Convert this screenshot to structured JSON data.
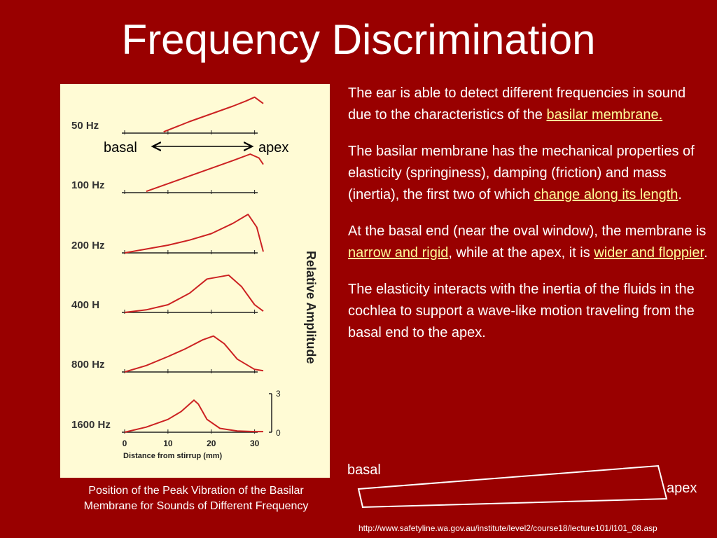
{
  "slide": {
    "title": "Frequency Discrimination",
    "caption": "Position of the Peak Vibration of the Basilar Membrane for Sounds of Different Frequency",
    "source_url": "http://www.safetyline.wa.gov.au/institute/level2/course18/lecture101/l101_08.asp",
    "background_color": "#990000",
    "highlight_color": "#ffff99"
  },
  "text_panel": {
    "p1": {
      "before": "The ear is able to detect different frequencies in sound due to the characteristics of the ",
      "link": "basilar membrane.",
      "after": ""
    },
    "p2": {
      "before": "The basilar membrane has the mechanical properties of elasticity (springiness), damping (friction) and mass (inertia), the first two of which ",
      "link": "change along its length",
      "after": "."
    },
    "p3": {
      "before": "At the basal end (near the oval window), the membrane is ",
      "link": "narrow and rigid",
      "mid": ", while at the apex, it is ",
      "link2": "wider and floppier",
      "after": "."
    },
    "p4": {
      "text": "The elasticity interacts with the inertia of the fluids in the cochlea to support a wave-like motion traveling from the basal end to the apex."
    }
  },
  "membrane_diagram": {
    "basal_label": "basal",
    "apex_label": "apex"
  },
  "chart_data": {
    "type": "line",
    "xlabel": "Distance from stirrup (mm)",
    "ylabel": "Relative Amplitude",
    "xlim": [
      0,
      32
    ],
    "x_ticks": [
      0,
      10,
      20,
      30
    ],
    "ylim": [
      0,
      3
    ],
    "y_ticks": [
      0,
      3
    ],
    "direction_labels": {
      "left": "basal",
      "right": "apex"
    },
    "line_color": "#cc2222",
    "series": [
      {
        "name": "50 Hz",
        "x": [
          9,
          15,
          20,
          25,
          28,
          30,
          32
        ],
        "y": [
          0.1,
          0.9,
          1.5,
          2.1,
          2.5,
          2.8,
          2.3
        ]
      },
      {
        "name": "100 Hz",
        "x": [
          5,
          10,
          15,
          20,
          25,
          29,
          31,
          32
        ],
        "y": [
          0.1,
          0.7,
          1.3,
          1.9,
          2.5,
          3.0,
          2.7,
          2.2
        ]
      },
      {
        "name": "200 Hz",
        "x": [
          0,
          5,
          10,
          15,
          20,
          25,
          28.5,
          30.5,
          32
        ],
        "y": [
          0,
          0.3,
          0.6,
          1.0,
          1.5,
          2.3,
          3.0,
          2.0,
          0.1
        ]
      },
      {
        "name": "400 H",
        "x": [
          0,
          5,
          10,
          15,
          19,
          24,
          27,
          30,
          32
        ],
        "y": [
          0,
          0.2,
          0.6,
          1.5,
          2.6,
          2.9,
          2.0,
          0.6,
          0.1
        ]
      },
      {
        "name": "800 Hz",
        "x": [
          0,
          5,
          10,
          14,
          18,
          20.5,
          23,
          26,
          30,
          32
        ],
        "y": [
          0,
          0.5,
          1.2,
          1.8,
          2.5,
          2.8,
          2.2,
          1.0,
          0.2,
          0.1
        ]
      },
      {
        "name": "1600 Hz",
        "x": [
          0,
          5,
          10,
          13,
          16,
          17,
          19,
          22,
          26,
          30,
          32
        ],
        "y": [
          0,
          0.4,
          1.0,
          1.6,
          2.5,
          2.2,
          1.0,
          0.3,
          0.1,
          0.05,
          0.05
        ]
      }
    ]
  }
}
